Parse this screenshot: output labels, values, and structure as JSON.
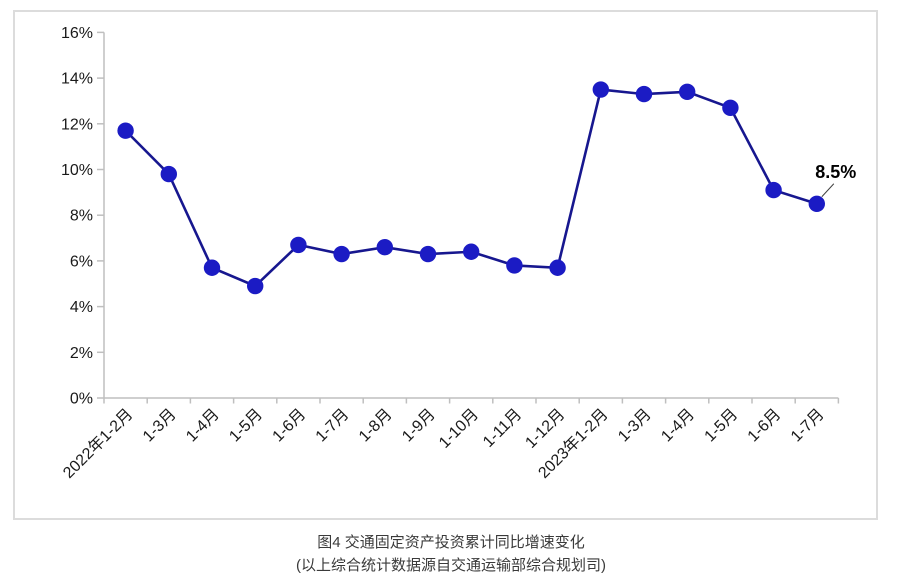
{
  "caption": {
    "title": "图4  交通固定资产投资累计同比增速变化",
    "source": "(以上综合统计数据源自交通运输部综合规划司)"
  },
  "chart_data": {
    "type": "line",
    "title": "图4 交通固定资产投资累计同比增速变化",
    "categories": [
      "2022年1-2月",
      "1-3月",
      "1-4月",
      "1-5月",
      "1-6月",
      "1-7月",
      "1-8月",
      "1-9月",
      "1-10月",
      "1-11月",
      "1-12月",
      "2023年1-2月",
      "1-3月",
      "1-4月",
      "1-5月",
      "1-6月",
      "1-7月"
    ],
    "series": [
      {
        "name": "交通固定资产投资累计同比增速",
        "values": [
          11.7,
          9.8,
          5.7,
          4.9,
          6.7,
          6.3,
          6.6,
          6.3,
          6.4,
          5.8,
          5.7,
          13.5,
          13.3,
          13.4,
          12.7,
          9.1,
          8.5
        ]
      }
    ],
    "xlabel": "",
    "ylabel": "",
    "ylim": [
      0,
      16
    ],
    "ytick_step": 2,
    "ytick_suffix": "%",
    "grid": false,
    "legend_position": "none",
    "annotation": {
      "text": "8.5%",
      "index": 16
    },
    "colors": {
      "line": "#17178F",
      "marker": "#1B1BC4",
      "axis": "#BFBFBF",
      "border": "#DCDCDC",
      "annotation_line": "#404040"
    }
  }
}
